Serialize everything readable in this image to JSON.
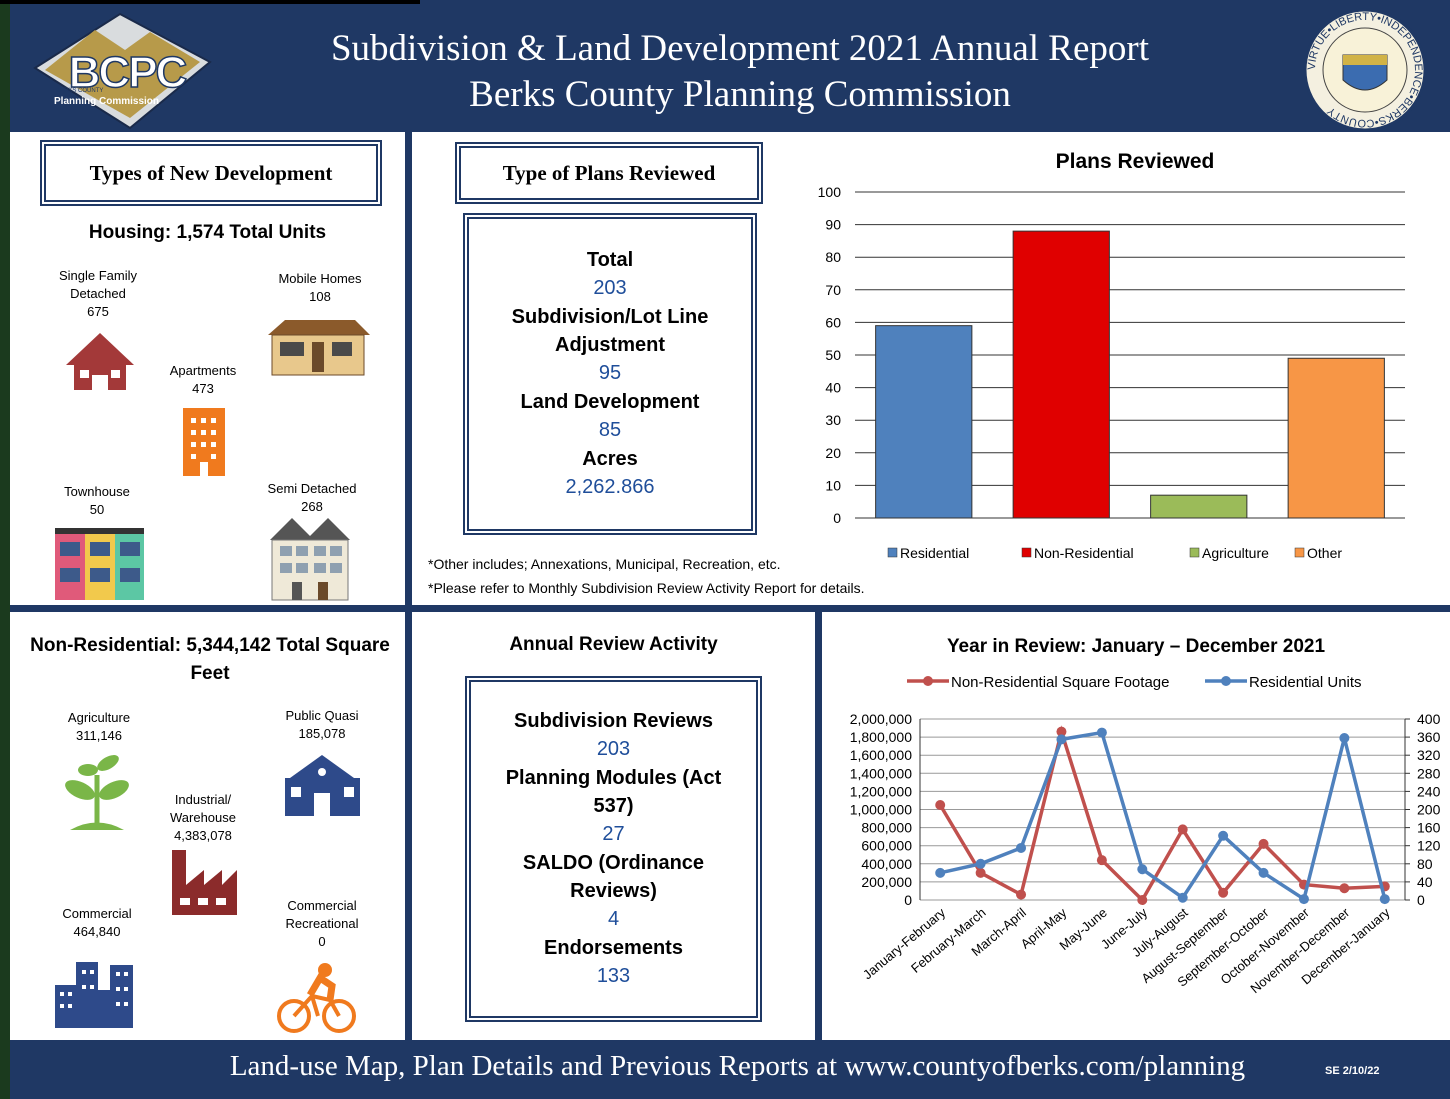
{
  "header": {
    "title": "Subdivision & Land Development 2021 Annual Report",
    "subtitle": "Berks County Planning Commission",
    "logo_text": "BCPC",
    "logo_sub": "BERKS COUNTY",
    "logo_caption": "Planning Commission",
    "seal_text": "VIRTUE•LIBERTY•INDEPENDENCE•BERKS•COUNTY"
  },
  "development": {
    "heading": "Types of New Development",
    "housing_title": "Housing: 1,574 Total Units",
    "housing": [
      {
        "label": "Single Family Detached",
        "value": "675"
      },
      {
        "label": "Mobile Homes",
        "value": "108"
      },
      {
        "label": "Apartments",
        "value": "473"
      },
      {
        "label": "Townhouse",
        "value": "50"
      },
      {
        "label": "Semi Detached",
        "value": "268"
      }
    ],
    "nonres_title": "Non-Residential: 5,344,142 Total Square Feet",
    "nonres": [
      {
        "label": "Agriculture",
        "value": "311,146"
      },
      {
        "label": "Public Quasi",
        "value": "185,078"
      },
      {
        "label": "Industrial/ Warehouse",
        "value": "4,383,078"
      },
      {
        "label": "Commercial",
        "value": "464,840"
      },
      {
        "label": "Commercial Recreational",
        "value": "0"
      }
    ]
  },
  "plans": {
    "heading": "Type of Plans Reviewed",
    "items": [
      {
        "label": "Total",
        "value": "203"
      },
      {
        "label": "Subdivision/Lot Line Adjustment",
        "value": "95"
      },
      {
        "label": "Land Development",
        "value": "85"
      },
      {
        "label": "Acres",
        "value": "2,262.866"
      }
    ],
    "notes": [
      "*Other includes; Annexations, Municipal, Recreation, etc.",
      "*Please refer to Monthly Subdivision Review Activity Report for details."
    ]
  },
  "review": {
    "heading": "Annual Review Activity",
    "items": [
      {
        "label": "Subdivision Reviews",
        "value": "203"
      },
      {
        "label": "Planning Modules (Act 537)",
        "value": "27"
      },
      {
        "label": "SALDO (Ordinance Reviews)",
        "value": "4"
      },
      {
        "label": "Endorsements",
        "value": "133"
      }
    ]
  },
  "footer": {
    "text": "Land-use Map, Plan Details and Previous Reports at www.countyofberks.com/planning",
    "stamp": "SE 2/10/22"
  },
  "chart_data": [
    {
      "type": "bar",
      "title": "Plans Reviewed",
      "categories": [
        "Residential",
        "Non-Residential",
        "Agriculture",
        "Other"
      ],
      "values": [
        59,
        88,
        7,
        49
      ],
      "colors": [
        "#4f81bd",
        "#e00000",
        "#9bbb59",
        "#f79646"
      ],
      "ylim": [
        0,
        100
      ],
      "yticks": [
        0,
        10,
        20,
        30,
        40,
        50,
        60,
        70,
        80,
        90,
        100
      ],
      "grid": true,
      "legend": "bottom"
    },
    {
      "type": "line",
      "title": "Year in Review: January – December 2021",
      "categories": [
        "January-February",
        "February-March",
        "March-April",
        "April-May",
        "May-June",
        "June-July",
        "July-August",
        "August-September",
        "September-October",
        "October-November",
        "November-December",
        "December-January"
      ],
      "series": [
        {
          "name": "Non-Residential Square Footage",
          "color": "#c0504d",
          "values": [
            1050000,
            300000,
            60000,
            1860000,
            440000,
            0,
            780000,
            80000,
            620000,
            170000,
            130000,
            150000
          ]
        },
        {
          "name": "Residential Units",
          "color": "#4f81bd",
          "axis": "y2",
          "values": [
            60,
            80,
            115,
            355,
            370,
            68,
            5,
            142,
            60,
            2,
            358,
            2
          ]
        }
      ],
      "ylim": [
        0,
        2000000
      ],
      "yticks": [
        0,
        {
          "value": 200000,
          "label": "200,000"
        },
        {
          "value": 400000,
          "label": "400,000"
        },
        {
          "value": 600000,
          "label": "600,000"
        },
        {
          "value": 800000,
          "label": "800,000"
        },
        {
          "value": 1000000,
          "label": "1,000,000"
        },
        {
          "value": 1200000,
          "label": "1,200,000"
        },
        {
          "value": 1400000,
          "label": "1,400,000"
        },
        {
          "value": 1600000,
          "label": "1,600,000"
        },
        {
          "value": 1800000,
          "label": "1,800,000"
        },
        {
          "value": 2000000,
          "label": "2,000,000"
        }
      ],
      "y2lim": [
        0,
        400
      ],
      "y2ticks": [
        0,
        40,
        80,
        120,
        160,
        200,
        240,
        280,
        320,
        360,
        400
      ],
      "grid": true,
      "legend": "top"
    }
  ]
}
